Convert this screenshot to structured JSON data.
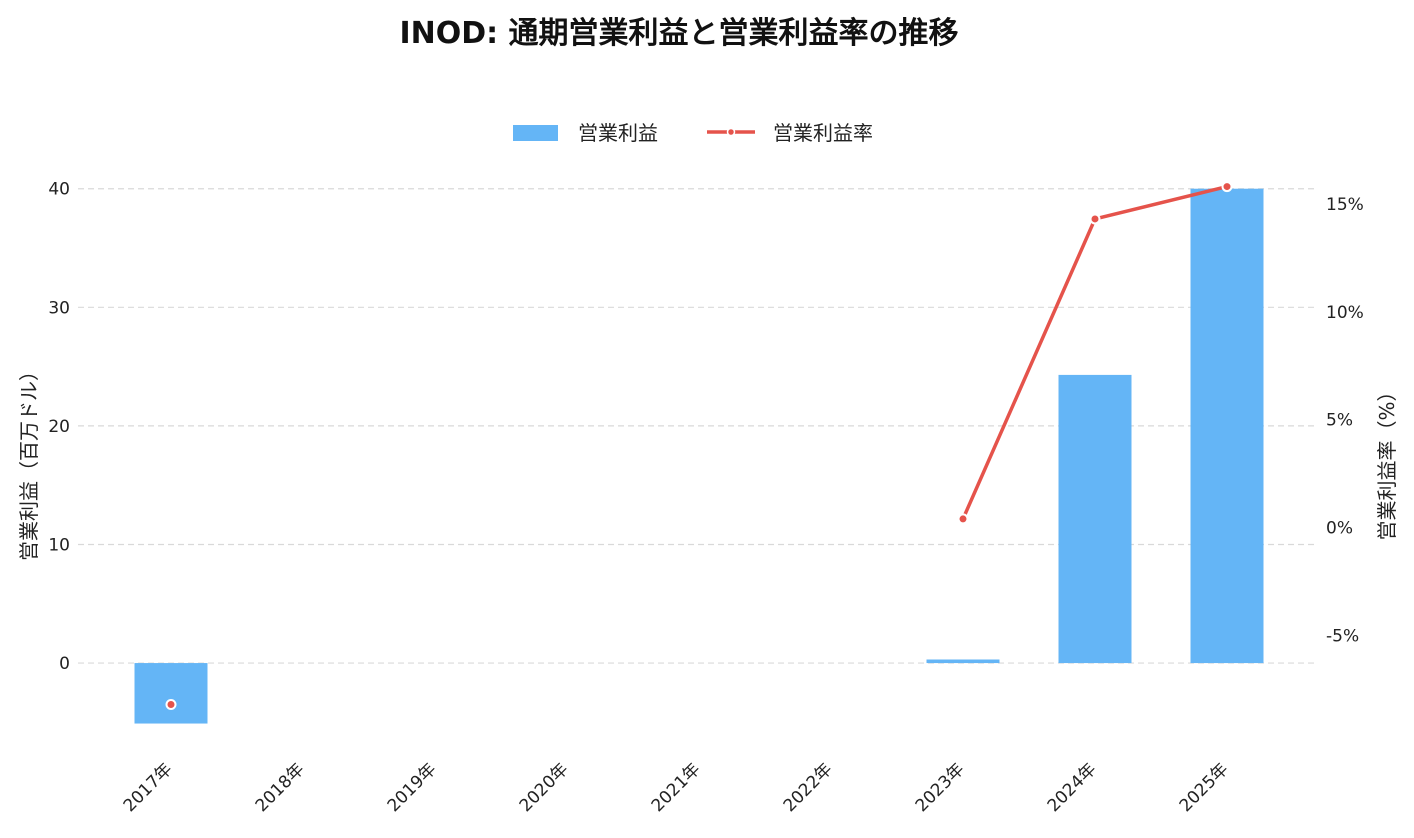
{
  "chart_data": {
    "type": "bar",
    "title": "INOD: 通期営業利益と営業利益率の推移",
    "categories": [
      "2017年",
      "2018年",
      "2019年",
      "2020年",
      "2021年",
      "2022年",
      "2023年",
      "2024年",
      "2025年"
    ],
    "series": [
      {
        "name": "営業利益",
        "type": "bar",
        "axis": "left",
        "color": "#64b5f6",
        "values": [
          -5.1,
          null,
          null,
          null,
          null,
          null,
          0.3,
          24.3,
          40.0
        ]
      },
      {
        "name": "営業利益率",
        "type": "line",
        "axis": "right",
        "color": "#e5534b",
        "values": [
          -8.2,
          null,
          null,
          null,
          null,
          null,
          0.4,
          14.3,
          15.8
        ]
      }
    ],
    "ylabel": "営業利益（百万ドル）",
    "ylabel_right": "営業利益率（%）",
    "ylim": [
      -7.5,
      42
    ],
    "ylim_right": [
      -10.4,
      16.8
    ],
    "yticks": [
      0,
      10,
      20,
      30,
      40
    ],
    "yticks_right": [
      -5,
      0,
      5,
      10,
      15
    ],
    "ytick_labels": [
      "0",
      "10",
      "20",
      "30",
      "40"
    ],
    "ytick_labels_right": [
      "-5%",
      "0%",
      "5%",
      "10%",
      "15%"
    ],
    "grid": true,
    "legend_position": "top-center"
  }
}
